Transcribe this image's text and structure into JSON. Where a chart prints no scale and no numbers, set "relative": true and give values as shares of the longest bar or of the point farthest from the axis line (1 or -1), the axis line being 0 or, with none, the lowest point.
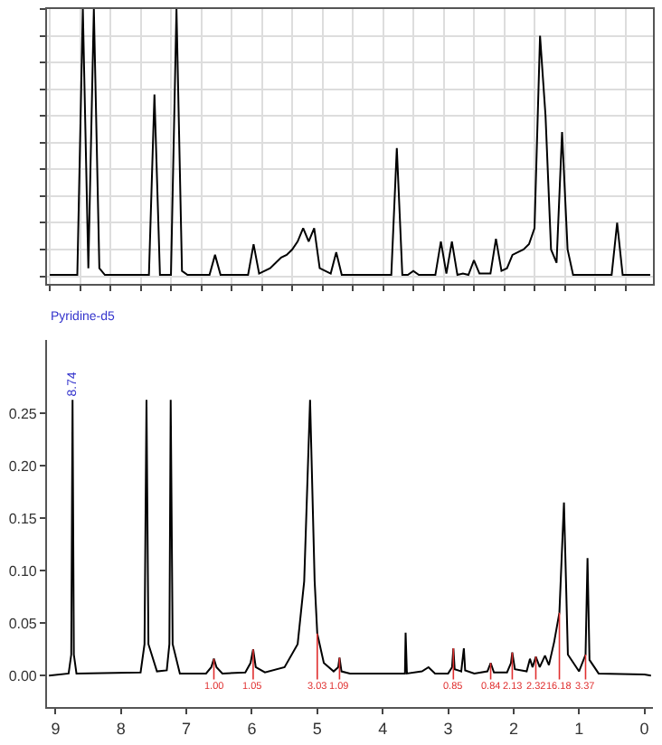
{
  "chart_data": [
    {
      "type": "line",
      "relative": true,
      "color": "#000000",
      "grid": true,
      "tick_labels": false,
      "categories": [
        null,
        null,
        null,
        null,
        null,
        null,
        null,
        null,
        null,
        null,
        null,
        null,
        null,
        null,
        null,
        null,
        null,
        null,
        null,
        null,
        null,
        null,
        null,
        null,
        null,
        null,
        null,
        null,
        null,
        null,
        null,
        null,
        null,
        null,
        null,
        null,
        null,
        null,
        null,
        null,
        null,
        null,
        null,
        null,
        null,
        null,
        null,
        null,
        null,
        null,
        null,
        null,
        null,
        null,
        null,
        null,
        null,
        null,
        null,
        null,
        null,
        null,
        null,
        null,
        null,
        null,
        null,
        null,
        null,
        null,
        null,
        null,
        null,
        null,
        null,
        null,
        null,
        null,
        null,
        null,
        null,
        null,
        null,
        null,
        null,
        null,
        null,
        null,
        null,
        null,
        null,
        null,
        null,
        null,
        null,
        null,
        null,
        null,
        null,
        null,
        null,
        null,
        null,
        null,
        null,
        null,
        null,
        null,
        null,
        null
      ],
      "values": [
        0.005,
        0.005,
        0.005,
        0.005,
        0.005,
        0.005,
        1.0,
        0.03,
        1.0,
        0.03,
        0.005,
        0.005,
        0.005,
        0.005,
        0.005,
        0.005,
        0.005,
        0.005,
        0.005,
        0.68,
        0.005,
        0.005,
        0.005,
        1.0,
        0.02,
        0.005,
        0.005,
        0.005,
        0.005,
        0.005,
        0.08,
        0.005,
        0.005,
        0.005,
        0.005,
        0.005,
        0.005,
        0.12,
        0.01,
        0.02,
        0.03,
        0.05,
        0.07,
        0.08,
        0.1,
        0.13,
        0.18,
        0.13,
        0.18,
        0.03,
        0.02,
        0.01,
        0.09,
        0.005,
        0.005,
        0.005,
        0.005,
        0.005,
        0.005,
        0.005,
        0.005,
        0.005,
        0.005,
        0.48,
        0.005,
        0.005,
        0.02,
        0.005,
        0.005,
        0.005,
        0.005,
        0.13,
        0.01,
        0.13,
        0.005,
        0.01,
        0.005,
        0.06,
        0.01,
        0.01,
        0.01,
        0.14,
        0.02,
        0.03,
        0.08,
        0.09,
        0.1,
        0.12,
        0.18,
        0.9,
        0.6,
        0.1,
        0.05,
        0.54,
        0.1,
        0.005,
        0.005,
        0.005,
        0.005,
        0.005,
        0.005,
        0.005,
        0.005,
        0.2,
        0.005,
        0.005,
        0.005,
        0.005,
        0.005,
        0.005
      ],
      "annotations": [
        "Pyridine-d5"
      ]
    },
    {
      "type": "line",
      "color": "#000000",
      "x": [
        9.1,
        8.8,
        8.76,
        8.74,
        8.72,
        8.68,
        7.7,
        7.64,
        7.61,
        7.58,
        7.45,
        7.3,
        7.26,
        7.24,
        7.21,
        7.1,
        6.7,
        6.62,
        6.58,
        6.54,
        6.45,
        6.1,
        6.02,
        5.98,
        5.94,
        5.8,
        5.5,
        5.3,
        5.2,
        5.11,
        5.04,
        5.0,
        4.9,
        4.75,
        4.68,
        4.66,
        4.63,
        4.5,
        3.7,
        3.66,
        3.65,
        3.63,
        3.4,
        3.3,
        3.2,
        3.0,
        2.94,
        2.92,
        2.9,
        2.8,
        2.76,
        2.74,
        2.6,
        2.4,
        2.35,
        2.3,
        2.1,
        2.04,
        2.02,
        1.98,
        1.8,
        1.75,
        1.71,
        1.66,
        1.6,
        1.52,
        1.46,
        1.38,
        1.3,
        1.23,
        1.17,
        1.0,
        0.9,
        0.87,
        0.84,
        0.7,
        0.0,
        -0.1
      ],
      "values": [
        0,
        0.002,
        0.02,
        0.263,
        0.02,
        0.002,
        0.003,
        0.03,
        0.263,
        0.03,
        0.004,
        0.005,
        0.03,
        0.263,
        0.03,
        0.002,
        0.002,
        0.008,
        0.016,
        0.008,
        0.002,
        0.003,
        0.012,
        0.025,
        0.008,
        0.003,
        0.008,
        0.03,
        0.09,
        0.263,
        0.09,
        0.04,
        0.012,
        0.004,
        0.008,
        0.017,
        0.004,
        0.002,
        0.002,
        0.002,
        0.041,
        0.002,
        0.004,
        0.008,
        0.002,
        0.002,
        0.008,
        0.026,
        0.006,
        0.004,
        0.026,
        0.005,
        0.002,
        0.004,
        0.012,
        0.003,
        0.003,
        0.012,
        0.022,
        0.006,
        0.004,
        0.016,
        0.008,
        0.018,
        0.008,
        0.019,
        0.01,
        0.032,
        0.06,
        0.165,
        0.02,
        0.004,
        0.02,
        0.112,
        0.015,
        0.002,
        0.001,
        0
      ],
      "xlim": [
        9.13,
        -0.13
      ],
      "xticks": [
        9,
        8,
        7,
        6,
        5,
        4,
        3,
        2,
        1,
        0
      ],
      "ylim": [
        -0.03,
        0.32
      ],
      "yticks": [
        {
          "value": 0,
          "label": "0.00"
        },
        {
          "value": 0.05,
          "label": "0.05"
        },
        {
          "value": 0.1,
          "label": "0.10"
        },
        {
          "value": 0.15,
          "label": "0.15"
        },
        {
          "value": 0.2,
          "label": "0.20"
        },
        {
          "value": 0.25,
          "label": "0.25"
        }
      ],
      "annotations": [
        {
          "text": "8.74",
          "x": 8.74,
          "y": 0.263
        },
        {
          "text": "1.00",
          "x": 6.58,
          "y": 0.016
        },
        {
          "text": "1.05",
          "x": 5.98,
          "y": 0.025
        },
        {
          "text": "3.03",
          "x": 5.0,
          "y": 0.04
        },
        {
          "text": "1.09",
          "x": 4.66,
          "y": 0.017
        },
        {
          "text": "0.85",
          "x": 2.92,
          "y": 0.026
        },
        {
          "text": "0.84",
          "x": 2.35,
          "y": 0.012
        },
        {
          "text": "2.13",
          "x": 2.02,
          "y": 0.022
        },
        {
          "text": "2.32",
          "x": 1.66,
          "y": 0.018
        },
        {
          "text": "16.18",
          "x": 1.3,
          "y": 0.06
        },
        {
          "text": "3.37",
          "x": 0.9,
          "y": 0.02
        }
      ]
    }
  ]
}
